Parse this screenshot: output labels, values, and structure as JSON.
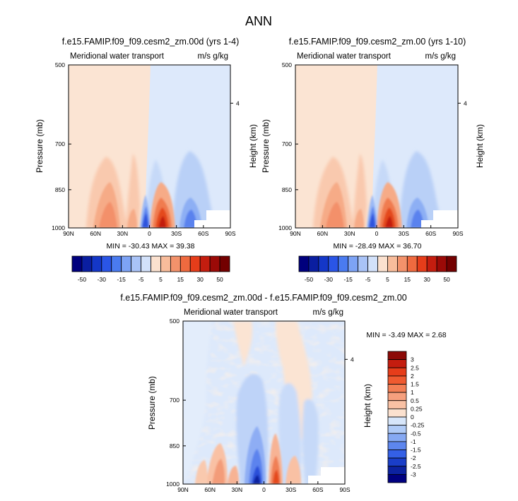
{
  "main_title": "ANN",
  "panels": [
    {
      "id": "p1",
      "title": "f.e15.FAMIP.f09_f09.cesm2_zm.00d (yrs 1-4)",
      "left_string": "Meridional water transport",
      "right_string": "m/s g/kg",
      "y_label": "Pressure (mb)",
      "right_label": "",
      "stats": "MIN = -30.43  MAX = 39.38"
    },
    {
      "id": "p2",
      "title": "f.e15.FAMIP.f09_f09.cesm2_zm.00 (yrs 1-10)",
      "left_string": "Meridional water transport",
      "right_string": "m/s g/kg",
      "y_label": "Pressure (mb)",
      "right_label": "Height (km)",
      "stats": "MIN = -28.49  MAX = 36.70"
    },
    {
      "id": "p3",
      "title": "f.e15.FAMIP.f09_f09.cesm2_zm.00d - f.e15.FAMIP.f09_f09.cesm2_zm.00",
      "left_string": "Meridional water transport",
      "right_string": "m/s g/kg",
      "y_label": "Pressure (mb)",
      "right_label": "Height (km)",
      "stats": "MIN =  -3.49  MAX =   2.68"
    }
  ],
  "left_panel_right_label": "Height (km)",
  "x_ticks": [
    "90N",
    "60N",
    "30N",
    "0",
    "30S",
    "60S",
    "90S"
  ],
  "y_ticks": [
    "500",
    "700",
    "850",
    "1000"
  ],
  "height_tick": "4",
  "top_colorbar": {
    "labels": [
      "-50",
      "-30",
      "-15",
      "-5",
      "5",
      "15",
      "30",
      "50"
    ],
    "colors": [
      "#00007d",
      "#0a1ea0",
      "#1437c8",
      "#2a55e6",
      "#4a7bf0",
      "#7da3f5",
      "#a9c3f7",
      "#d2e1fa",
      "#fbe1cf",
      "#f8bc9b",
      "#f3926b",
      "#ef6a3f",
      "#e63d1a",
      "#c41d0f",
      "#9b0a07",
      "#730000"
    ]
  },
  "diff_colorbar": {
    "labels": [
      "3",
      "2.5",
      "2",
      "1.5",
      "1",
      "0.5",
      "0.25",
      "0",
      "-0.25",
      "-0.5",
      "-1",
      "-1.5",
      "-2",
      "-2.5",
      "-3"
    ],
    "colors": [
      "#8c0a07",
      "#c41d0f",
      "#e63d1a",
      "#ef5a30",
      "#f37f55",
      "#f6a07e",
      "#f9c1a4",
      "#fbe1cf",
      "#d7e6fa",
      "#b0cbf7",
      "#86a9f3",
      "#5d86ee",
      "#3460e6",
      "#1a3ec8",
      "#0c22a0",
      "#000080"
    ]
  },
  "chart_data": [
    {
      "type": "heatmap",
      "title": "f.e15.FAMIP.f09_f09.cesm2_zm.00d (yrs 1-4)",
      "xlabel": "",
      "ylabel": "Pressure (mb)",
      "x_ticks": [
        "90N",
        "60N",
        "30N",
        "0",
        "30S",
        "60S",
        "90S"
      ],
      "y_ticks": [
        500,
        700,
        850,
        1000
      ],
      "ylim": [
        1000,
        500
      ],
      "contour_levels": [
        -50,
        -40,
        -30,
        -25,
        -20,
        -15,
        -10,
        -5,
        5,
        10,
        15,
        20,
        25,
        30,
        40,
        50
      ],
      "min": -30.43,
      "max": 39.38
    },
    {
      "type": "heatmap",
      "title": "f.e15.FAMIP.f09_f09.cesm2_zm.00 (yrs 1-10)",
      "xlabel": "",
      "ylabel": "Pressure (mb)",
      "x_ticks": [
        "90N",
        "60N",
        "30N",
        "0",
        "30S",
        "60S",
        "90S"
      ],
      "y_ticks": [
        500,
        700,
        850,
        1000
      ],
      "ylim": [
        1000,
        500
      ],
      "contour_levels": [
        -50,
        -40,
        -30,
        -25,
        -20,
        -15,
        -10,
        -5,
        5,
        10,
        15,
        20,
        25,
        30,
        40,
        50
      ],
      "min": -28.49,
      "max": 36.7
    },
    {
      "type": "heatmap",
      "title": "f.e15.FAMIP.f09_f09.cesm2_zm.00d - f.e15.FAMIP.f09_f09.cesm2_zm.00",
      "xlabel": "",
      "ylabel": "Pressure (mb)",
      "x_ticks": [
        "90N",
        "60N",
        "30N",
        "0",
        "30S",
        "60S",
        "90S"
      ],
      "y_ticks": [
        500,
        700,
        850,
        1000
      ],
      "ylim": [
        1000,
        500
      ],
      "contour_levels": [
        -3,
        -2.5,
        -2,
        -1.5,
        -1,
        -0.5,
        -0.25,
        0,
        0.25,
        0.5,
        1,
        1.5,
        2,
        2.5,
        3
      ],
      "min": -3.49,
      "max": 2.68
    }
  ]
}
